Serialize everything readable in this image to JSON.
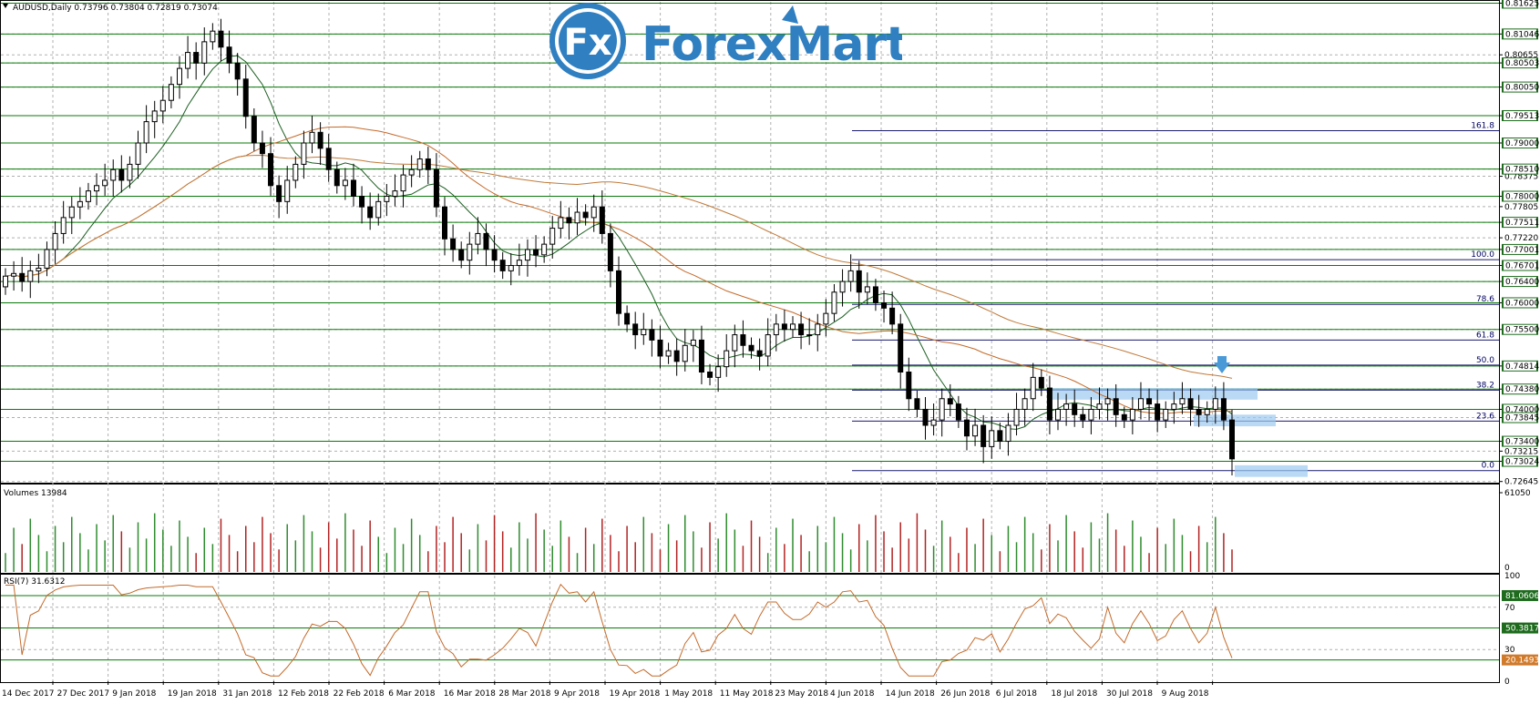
{
  "symbol_header": "AUDUSD,Daily  0.73796 0.73804 0.72819 0.73074",
  "logo": {
    "text": "ForexMart",
    "badge": "Fx",
    "color": "#2f7fc1"
  },
  "colors": {
    "grid": "#b0b0b0",
    "hline": "#0a7a0a",
    "fib": "#1a1a6e",
    "bull_candle": "#2e8b2e",
    "bear_candle": "#000000",
    "ma_fast": "#1b5e20",
    "ma_mid": "#c46a2a",
    "ma_slow": "#c07a3a",
    "rsi": "#c46a2a",
    "volume_up": "#2e8b2e",
    "volume_down": "#b22222",
    "arrow": "#4a9ad8",
    "zone": "#9cc9f0",
    "price_label_bg": "#1e6b1e"
  },
  "chart_data": [
    {
      "type": "candlestick",
      "title": "AUDUSD,Daily  0.73796 0.73804 0.72819 0.73074",
      "ylim": [
        0.7264,
        0.8165
      ],
      "y_tick_labels": [
        "0.81625",
        "0.81046",
        "0.80655",
        "0.80503",
        "0.80050",
        "0.79513",
        "0.79000",
        "0.78510",
        "0.78375",
        "0.78000",
        "0.77805",
        "0.77511",
        "0.77220",
        "0.77001",
        "0.76701",
        "0.76400",
        "0.76000",
        "0.75500",
        "0.74814",
        "0.74380",
        "0.74000",
        "0.73845",
        "0.73400",
        "0.73215",
        "0.73024",
        "0.72645"
      ],
      "price_level_labels": [
        "0.81625",
        "0.81046",
        "0.80503",
        "0.80050",
        "0.79513",
        "0.79000",
        "0.78510",
        "0.78000",
        "0.77511",
        "0.77001",
        "0.76701",
        "0.76400",
        "0.76000",
        "0.75500",
        "0.74814",
        "0.74380",
        "0.74000",
        "0.73845",
        "0.73400",
        "0.73024"
      ],
      "horizontal_levels": [
        0.81625,
        0.81046,
        0.80503,
        0.8005,
        0.79513,
        0.79,
        0.7851,
        0.78,
        0.77511,
        0.77001,
        0.76701,
        0.764,
        0.76,
        0.755,
        0.74814,
        0.7438,
        0.74,
        0.734,
        0.73024
      ],
      "fib_levels": [
        {
          "label": "161.8",
          "value": 0.7923
        },
        {
          "label": "100.0",
          "value": 0.7681
        },
        {
          "label": "78.6",
          "value": 0.7597
        },
        {
          "label": "61.8",
          "value": 0.753
        },
        {
          "label": "50.0",
          "value": 0.7483
        },
        {
          "label": "38.2",
          "value": 0.7436
        },
        {
          "label": "23.6",
          "value": 0.7378
        },
        {
          "label": "0.0",
          "value": 0.7285
        }
      ],
      "x_tick_labels": [
        "14 Dec 2017",
        "27 Dec 2017",
        "9 Jan 2018",
        "19 Jan 2018",
        "31 Jan 2018",
        "12 Feb 2018",
        "22 Feb 2018",
        "6 Mar 2018",
        "16 Mar 2018",
        "28 Mar 2018",
        "9 Apr 2018",
        "19 Apr 2018",
        "1 May 2018",
        "11 May 2018",
        "23 May 2018",
        "4 Jun 2018",
        "14 Jun 2018",
        "26 Jun 2018",
        "6 Jul 2018",
        "18 Jul 2018",
        "30 Jul 2018",
        "9 Aug 2018"
      ],
      "candles_close": [
        0.765,
        0.7655,
        0.764,
        0.766,
        0.7665,
        0.77,
        0.773,
        0.776,
        0.778,
        0.779,
        0.781,
        0.782,
        0.783,
        0.785,
        0.783,
        0.786,
        0.79,
        0.794,
        0.796,
        0.798,
        0.801,
        0.804,
        0.807,
        0.805,
        0.809,
        0.811,
        0.808,
        0.805,
        0.802,
        0.795,
        0.79,
        0.788,
        0.782,
        0.779,
        0.783,
        0.786,
        0.79,
        0.792,
        0.789,
        0.785,
        0.782,
        0.783,
        0.78,
        0.778,
        0.776,
        0.779,
        0.78,
        0.781,
        0.784,
        0.785,
        0.787,
        0.785,
        0.778,
        0.772,
        0.77,
        0.768,
        0.771,
        0.773,
        0.77,
        0.768,
        0.766,
        0.767,
        0.768,
        0.77,
        0.769,
        0.771,
        0.774,
        0.776,
        0.775,
        0.777,
        0.776,
        0.778,
        0.773,
        0.766,
        0.758,
        0.756,
        0.754,
        0.755,
        0.753,
        0.75,
        0.751,
        0.749,
        0.752,
        0.753,
        0.747,
        0.746,
        0.748,
        0.751,
        0.754,
        0.752,
        0.751,
        0.75,
        0.754,
        0.756,
        0.755,
        0.756,
        0.754,
        0.754,
        0.756,
        0.758,
        0.762,
        0.764,
        0.766,
        0.762,
        0.763,
        0.76,
        0.759,
        0.756,
        0.747,
        0.742,
        0.74,
        0.737,
        0.738,
        0.742,
        0.741,
        0.738,
        0.735,
        0.737,
        0.733,
        0.736,
        0.734,
        0.737,
        0.74,
        0.742,
        0.746,
        0.744,
        0.738,
        0.74,
        0.741,
        0.739,
        0.738,
        0.74,
        0.741,
        0.742,
        0.739,
        0.738,
        0.74,
        0.742,
        0.741,
        0.738,
        0.74,
        0.741,
        0.742,
        0.74,
        0.739,
        0.74,
        0.742,
        0.738,
        0.7307
      ]
    },
    {
      "type": "bar",
      "title": "Volumes 13984",
      "ylim": [
        0,
        61050
      ],
      "y_tick_labels": [
        "61050",
        "0"
      ]
    },
    {
      "type": "line",
      "title": "RSI(7) 31.6312",
      "ylim": [
        0,
        100
      ],
      "y_tick_labels": [
        "100",
        "70",
        "30",
        "0"
      ],
      "level_labels": [
        "81.0606",
        "50.3817",
        "20.1493"
      ]
    }
  ]
}
